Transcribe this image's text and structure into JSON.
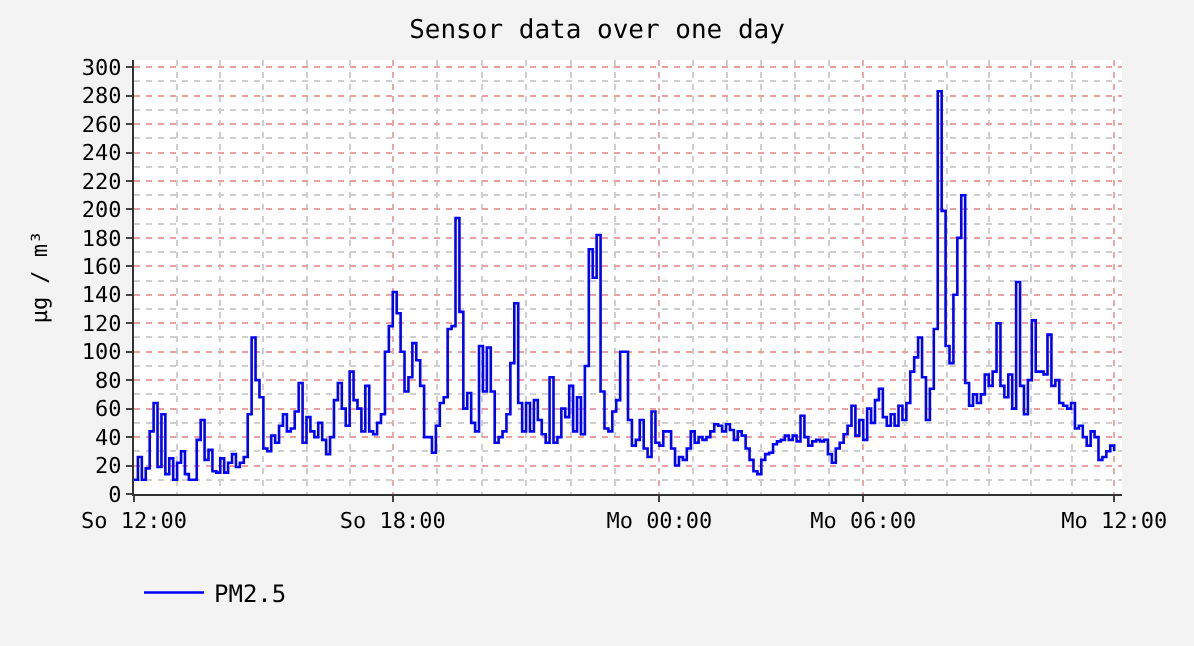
{
  "chart_data": {
    "type": "step",
    "title": "Sensor data over one day",
    "ylabel": "µg / m³",
    "categories": [
      "So 12:00",
      null,
      null,
      null,
      null,
      null,
      null,
      null,
      null,
      null,
      null,
      null,
      null,
      null,
      null,
      null,
      null,
      null,
      null,
      null,
      null,
      null,
      null,
      null,
      null,
      null,
      null,
      null,
      null,
      null,
      null,
      null,
      null,
      null,
      null,
      null,
      null,
      null,
      null,
      null,
      null,
      null,
      null,
      null,
      null,
      null,
      null,
      null,
      null,
      null,
      null,
      null,
      null,
      null,
      null,
      null,
      null,
      null,
      null,
      null,
      null,
      null,
      null,
      null,
      null,
      null,
      "So 18:00",
      null,
      null,
      null,
      null,
      null,
      null,
      null,
      null,
      null,
      null,
      null,
      null,
      null,
      null,
      null,
      null,
      null,
      null,
      null,
      null,
      null,
      null,
      null,
      null,
      null,
      null,
      null,
      null,
      null,
      null,
      null,
      null,
      null,
      null,
      null,
      null,
      null,
      null,
      null,
      null,
      null,
      null,
      null,
      null,
      null,
      null,
      null,
      null,
      null,
      null,
      null,
      null,
      null,
      null,
      null,
      null,
      null,
      null,
      null,
      null,
      null,
      null,
      null,
      null,
      null,
      null,
      null,
      "Mo 00:00",
      null,
      null,
      null,
      null,
      null,
      null,
      null,
      null,
      null,
      null,
      null,
      null,
      null,
      null,
      null,
      null,
      null,
      null,
      null,
      null,
      null,
      null,
      null,
      null,
      null,
      null,
      null,
      null,
      null,
      null,
      null,
      null,
      null,
      null,
      null,
      null,
      null,
      null,
      null,
      null,
      null,
      null,
      null,
      null,
      null,
      null,
      null,
      null,
      null,
      null,
      null,
      "Mo 06:00",
      null,
      null,
      null,
      null,
      null,
      null,
      null,
      null,
      null,
      null,
      null,
      null,
      null,
      null,
      null,
      null,
      null,
      null,
      null,
      null,
      null,
      null,
      null,
      null,
      null,
      null,
      null,
      null,
      null,
      null,
      null,
      null,
      null,
      null,
      null,
      null,
      null,
      null,
      null,
      null,
      null,
      null,
      null,
      null,
      null,
      null,
      null,
      null,
      null,
      null,
      null,
      null,
      null,
      null,
      null,
      null,
      null,
      null,
      null,
      null,
      null,
      null,
      null,
      "Mo 12:00"
    ],
    "ylim": [
      0,
      305
    ],
    "yticks": [
      0,
      20,
      40,
      60,
      80,
      100,
      120,
      140,
      160,
      180,
      200,
      220,
      240,
      260,
      280,
      300
    ],
    "grid": true,
    "legend": "bottom left",
    "marker": "none",
    "line_style": "solid",
    "series": [
      {
        "name": "PM2.5",
        "color": "#0000ff",
        "values": [
          10,
          26,
          10,
          18,
          44,
          64,
          19,
          56,
          14,
          25,
          10,
          22,
          30,
          14,
          10,
          10,
          38,
          52,
          24,
          31,
          16,
          15,
          25,
          15,
          22,
          28,
          19,
          22,
          26,
          56,
          110,
          80,
          68,
          32,
          30,
          41,
          36,
          48,
          56,
          44,
          46,
          58,
          78,
          36,
          54,
          44,
          40,
          50,
          38,
          28,
          40,
          66,
          78,
          60,
          48,
          86,
          66,
          60,
          44,
          76,
          44,
          42,
          50,
          56,
          100,
          118,
          142,
          127,
          100,
          72,
          82,
          106,
          94,
          76,
          40,
          40,
          29,
          48,
          64,
          68,
          116,
          118,
          194,
          128,
          60,
          71,
          50,
          44,
          104,
          72,
          103,
          72,
          36,
          40,
          44,
          56,
          92,
          134,
          64,
          44,
          64,
          44,
          66,
          52,
          42,
          36,
          82,
          36,
          40,
          60,
          54,
          76,
          44,
          68,
          42,
          90,
          172,
          152,
          182,
          72,
          46,
          44,
          58,
          66,
          100,
          100,
          52,
          34,
          38,
          52,
          32,
          26,
          58,
          36,
          34,
          44,
          44,
          32,
          20,
          26,
          24,
          32,
          44,
          36,
          40,
          38,
          40,
          44,
          49,
          48,
          44,
          49,
          45,
          38,
          44,
          41,
          32,
          24,
          16,
          14,
          24,
          28,
          29,
          35,
          37,
          38,
          41,
          38,
          41,
          37,
          55,
          40,
          34,
          37,
          38,
          37,
          38,
          28,
          22,
          32,
          36,
          42,
          48,
          62,
          41,
          52,
          38,
          60,
          50,
          66,
          74,
          54,
          48,
          56,
          48,
          62,
          52,
          64,
          86,
          96,
          110,
          82,
          52,
          74,
          116,
          283,
          199,
          104,
          92,
          140,
          180,
          210,
          78,
          62,
          70,
          64,
          70,
          84,
          76,
          86,
          120,
          76,
          68,
          84,
          60,
          149,
          76,
          56,
          80,
          122,
          86,
          86,
          84,
          112,
          76,
          80,
          64,
          62,
          60,
          64,
          46,
          48,
          40,
          34,
          44,
          40,
          24,
          26,
          30,
          34,
          30
        ]
      }
    ]
  }
}
